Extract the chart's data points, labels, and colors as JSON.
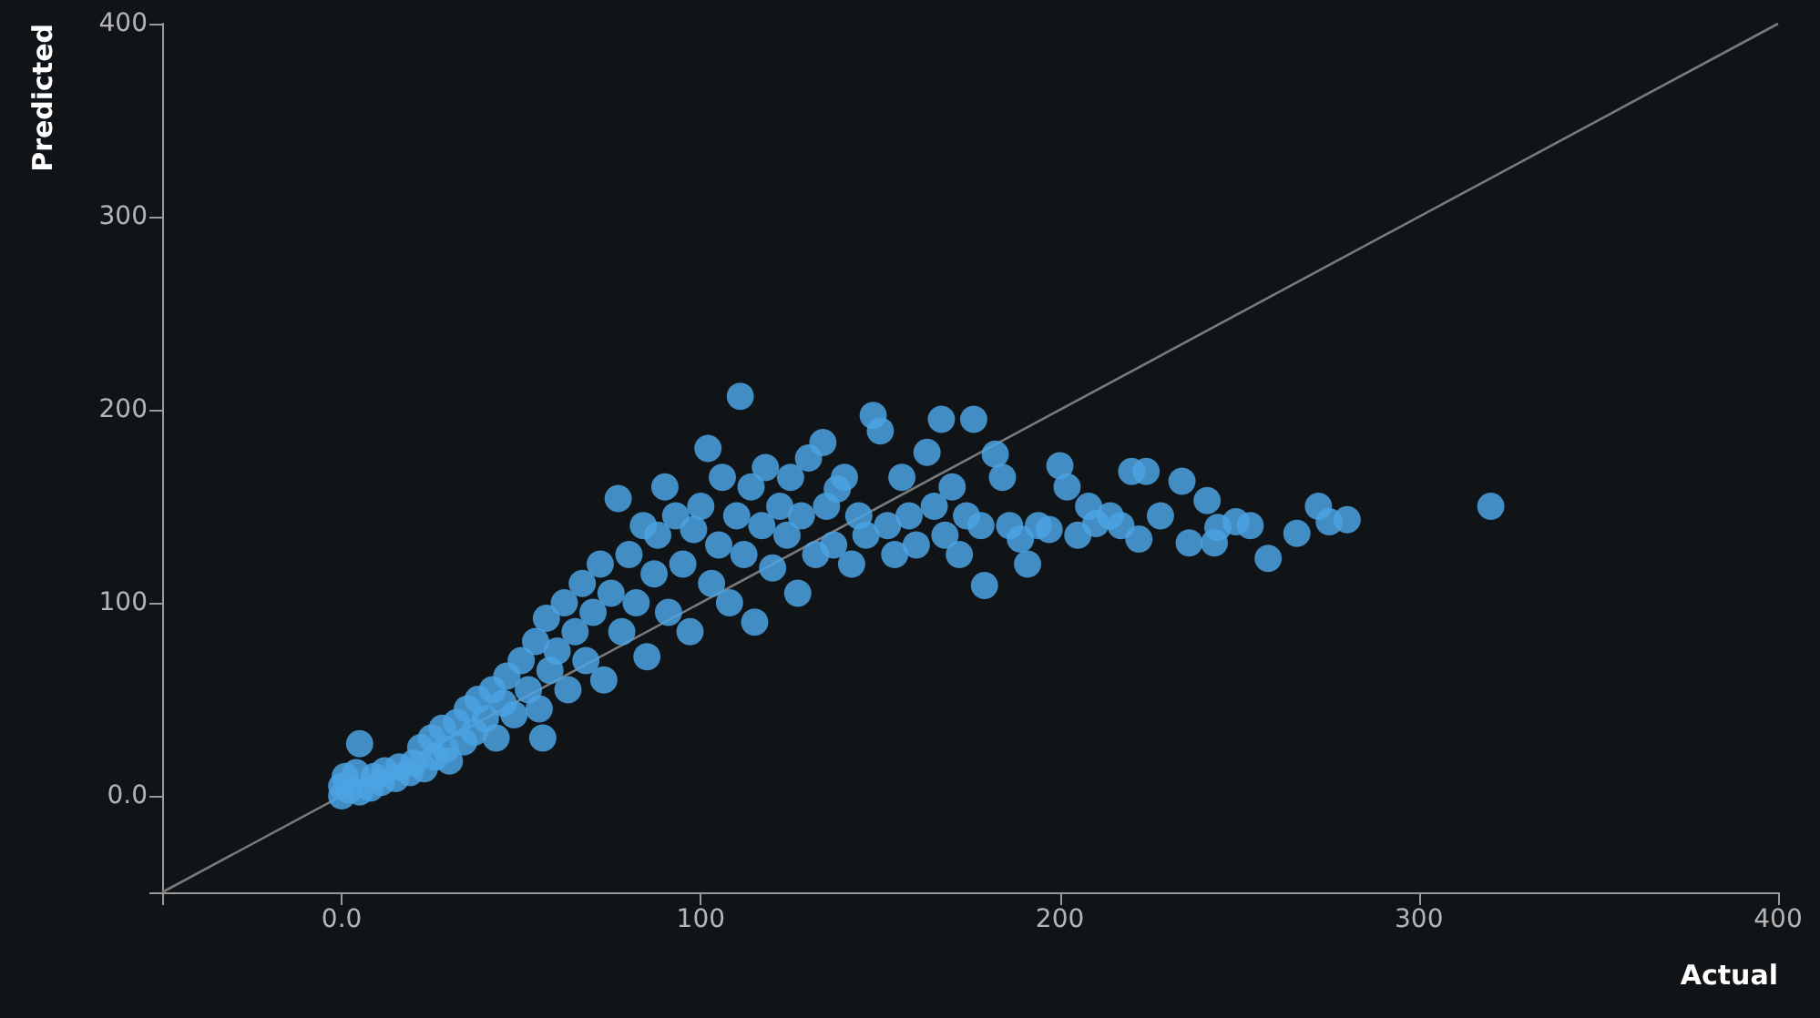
{
  "chart_data": {
    "type": "scatter",
    "xlabel": "Actual",
    "ylabel": "Predicted",
    "xlim": [
      -50,
      400
    ],
    "ylim": [
      -50,
      400
    ],
    "xticks": [
      {
        "value": -50,
        "label": null
      },
      {
        "value": 0,
        "label": "0.0"
      },
      100,
      200,
      300,
      400
    ],
    "yticks": [
      {
        "value": -50,
        "label": null
      },
      {
        "value": 0,
        "label": "0.0"
      },
      100,
      200,
      300,
      400
    ],
    "grid": false,
    "marker": "circle",
    "series": [
      {
        "type": "line",
        "color": "#7a7a7a",
        "marker": "none",
        "line_style": "solid",
        "x": [
          -50,
          400
        ],
        "values": [
          -50,
          400
        ]
      },
      {
        "color": "#4ba3e3",
        "x": [
          0,
          0,
          1,
          2,
          4,
          5,
          5,
          8,
          9,
          11,
          12,
          15,
          16,
          19,
          20,
          22,
          23,
          25,
          26,
          28,
          29,
          30,
          32,
          34,
          35,
          37,
          38,
          40,
          42,
          43,
          45,
          46,
          48,
          50,
          52,
          54,
          55,
          56,
          57,
          58,
          60,
          62,
          63,
          65,
          67,
          68,
          70,
          72,
          73,
          75,
          77,
          78,
          80,
          82,
          84,
          85,
          87,
          88,
          90,
          91,
          93,
          95,
          97,
          98,
          100,
          102,
          103,
          105,
          106,
          108,
          110,
          111,
          112,
          114,
          115,
          117,
          118,
          120,
          122,
          124,
          125,
          127,
          128,
          130,
          132,
          134,
          135,
          137,
          138,
          140,
          142,
          144,
          146,
          148,
          150,
          152,
          154,
          156,
          158,
          160,
          163,
          165,
          167,
          168,
          170,
          172,
          174,
          176,
          178,
          179,
          182,
          184,
          186,
          189,
          191,
          194,
          197,
          200,
          202,
          205,
          208,
          210,
          214,
          217,
          220,
          222,
          224,
          228,
          234,
          236,
          241,
          243,
          244,
          249,
          253,
          258,
          266,
          272,
          275,
          280,
          320
        ],
        "values": [
          0,
          5,
          10,
          3,
          12,
          2,
          27,
          4,
          10,
          7,
          13,
          9,
          15,
          12,
          17,
          25,
          14,
          30,
          20,
          35,
          24,
          18,
          38,
          28,
          45,
          33,
          50,
          40,
          55,
          30,
          48,
          62,
          42,
          70,
          55,
          80,
          45,
          30,
          92,
          65,
          75,
          100,
          55,
          85,
          110,
          70,
          95,
          120,
          60,
          105,
          154,
          85,
          125,
          100,
          140,
          72,
          115,
          135,
          160,
          95,
          145,
          120,
          85,
          138,
          150,
          180,
          110,
          130,
          165,
          100,
          145,
          207,
          125,
          160,
          90,
          140,
          170,
          118,
          150,
          135,
          165,
          105,
          145,
          175,
          125,
          183,
          150,
          130,
          159,
          165,
          120,
          145,
          135,
          197,
          189,
          140,
          125,
          165,
          145,
          130,
          178,
          150,
          195,
          135,
          160,
          125,
          145,
          195,
          140,
          109,
          177,
          165,
          140,
          133,
          120,
          140,
          138,
          171,
          160,
          135,
          150,
          141,
          145,
          140,
          168,
          133,
          168,
          145,
          163,
          131,
          153,
          131,
          139,
          142,
          140,
          123,
          136,
          150,
          142,
          143,
          150
        ]
      }
    ]
  }
}
